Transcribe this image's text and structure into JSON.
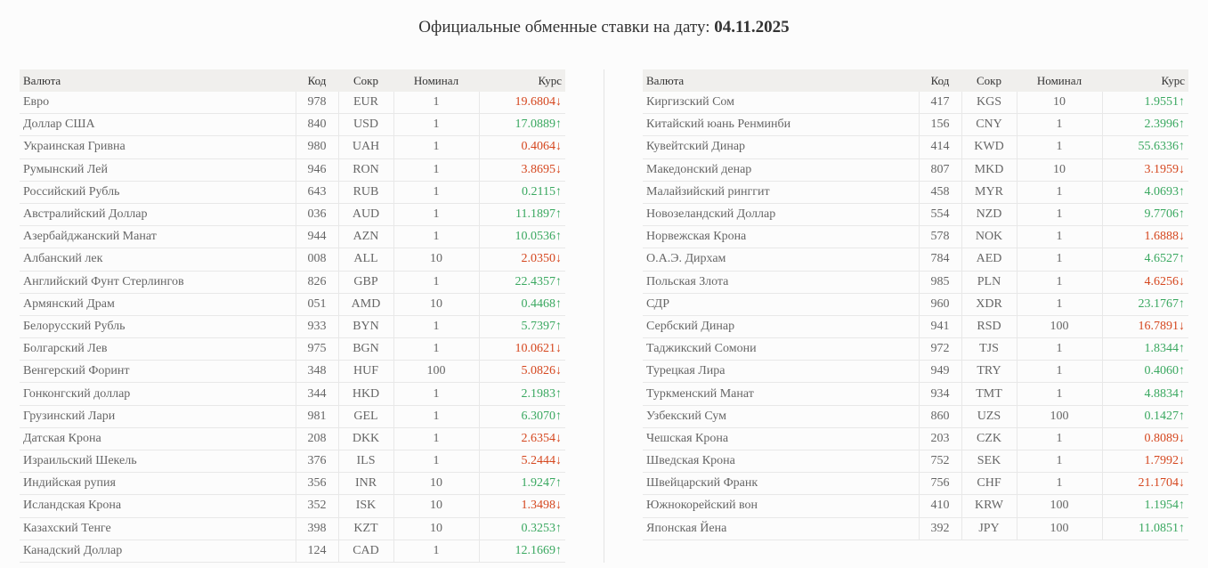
{
  "header": {
    "title": "Официальные обменные ставки на дату:",
    "date": "04.11.2025"
  },
  "tables": [
    {
      "columns": [
        "Валюта",
        "Код",
        "Сокр",
        "Номинал",
        "Курс"
      ],
      "rows": [
        {
          "cells": [
            "Евро",
            "978",
            "EUR",
            "1",
            "19.6804↓"
          ],
          "color": "#d5471f"
        },
        {
          "cells": [
            "Доллар США",
            "840",
            "USD",
            "1",
            "17.0889↑"
          ],
          "color": "#3aa860"
        },
        {
          "cells": [
            "Украинская Гривна",
            "980",
            "UAH",
            "1",
            "0.4064↓"
          ],
          "color": "#d5471f"
        },
        {
          "cells": [
            "Румынский Лей",
            "946",
            "RON",
            "1",
            "3.8695↓"
          ],
          "color": "#d5471f"
        },
        {
          "cells": [
            "Российский Рубль",
            "643",
            "RUB",
            "1",
            "0.2115↑"
          ],
          "color": "#3aa860"
        },
        {
          "cells": [
            "Австралийский Доллар",
            "036",
            "AUD",
            "1",
            "11.1897↑"
          ],
          "color": "#3aa860"
        },
        {
          "cells": [
            "Азербайджанский Манат",
            "944",
            "AZN",
            "1",
            "10.0536↑"
          ],
          "color": "#3aa860"
        },
        {
          "cells": [
            "Албанский лек",
            "008",
            "ALL",
            "10",
            "2.0350↓"
          ],
          "color": "#d5471f"
        },
        {
          "cells": [
            "Английский Фунт Стерлингов",
            "826",
            "GBP",
            "1",
            "22.4357↑"
          ],
          "color": "#3aa860"
        },
        {
          "cells": [
            "Армянский Драм",
            "051",
            "AMD",
            "10",
            "0.4468↑"
          ],
          "color": "#3aa860"
        },
        {
          "cells": [
            "Белорусский Рубль",
            "933",
            "BYN",
            "1",
            "5.7397↑"
          ],
          "color": "#3aa860"
        },
        {
          "cells": [
            "Болгарский Лев",
            "975",
            "BGN",
            "1",
            "10.0621↓"
          ],
          "color": "#d5471f"
        },
        {
          "cells": [
            "Венгерский Форинт",
            "348",
            "HUF",
            "100",
            "5.0826↓"
          ],
          "color": "#d5471f"
        },
        {
          "cells": [
            "Гонконгский доллар",
            "344",
            "HKD",
            "1",
            "2.1983↑"
          ],
          "color": "#3aa860"
        },
        {
          "cells": [
            "Грузинский Лари",
            "981",
            "GEL",
            "1",
            "6.3070↑"
          ],
          "color": "#3aa860"
        },
        {
          "cells": [
            "Датская Крона",
            "208",
            "DKK",
            "1",
            "2.6354↓"
          ],
          "color": "#d5471f"
        },
        {
          "cells": [
            "Израильский Шекель",
            "376",
            "ILS",
            "1",
            "5.2444↓"
          ],
          "color": "#d5471f"
        },
        {
          "cells": [
            "Индийская рупия",
            "356",
            "INR",
            "10",
            "1.9247↑"
          ],
          "color": "#3aa860"
        },
        {
          "cells": [
            "Исландская Крона",
            "352",
            "ISK",
            "10",
            "1.3498↓"
          ],
          "color": "#d5471f"
        },
        {
          "cells": [
            "Казахский Тенге",
            "398",
            "KZT",
            "10",
            "0.3253↑"
          ],
          "color": "#3aa860"
        },
        {
          "cells": [
            "Канадский Доллар",
            "124",
            "CAD",
            "1",
            "12.1669↑"
          ],
          "color": "#3aa860"
        }
      ]
    },
    {
      "columns": [
        "Валюта",
        "Код",
        "Сокр",
        "Номинал",
        "Курс"
      ],
      "rows": [
        {
          "cells": [
            "Киргизский Сом",
            "417",
            "KGS",
            "10",
            "1.9551↑"
          ],
          "color": "#3aa860"
        },
        {
          "cells": [
            "Китайский юань Ренминби",
            "156",
            "CNY",
            "1",
            "2.3996↑"
          ],
          "color": "#3aa860"
        },
        {
          "cells": [
            "Кувейтский Динар",
            "414",
            "KWD",
            "1",
            "55.6336↑"
          ],
          "color": "#3aa860"
        },
        {
          "cells": [
            "Македонский денар",
            "807",
            "MKD",
            "10",
            "3.1959↓"
          ],
          "color": "#d5471f"
        },
        {
          "cells": [
            "Малайзийский ринггит",
            "458",
            "MYR",
            "1",
            "4.0693↑"
          ],
          "color": "#3aa860"
        },
        {
          "cells": [
            "Новозеландский Доллар",
            "554",
            "NZD",
            "1",
            "9.7706↑"
          ],
          "color": "#3aa860"
        },
        {
          "cells": [
            "Норвежская Крона",
            "578",
            "NOK",
            "1",
            "1.6888↓"
          ],
          "color": "#d5471f"
        },
        {
          "cells": [
            "О.А.Э. Дирхам",
            "784",
            "AED",
            "1",
            "4.6527↑"
          ],
          "color": "#3aa860"
        },
        {
          "cells": [
            "Польская Злота",
            "985",
            "PLN",
            "1",
            "4.6256↓"
          ],
          "color": "#d5471f"
        },
        {
          "cells": [
            "СДР",
            "960",
            "XDR",
            "1",
            "23.1767↑"
          ],
          "color": "#3aa860"
        },
        {
          "cells": [
            "Сербский Динар",
            "941",
            "RSD",
            "100",
            "16.7891↓"
          ],
          "color": "#d5471f"
        },
        {
          "cells": [
            "Таджикский Сомони",
            "972",
            "TJS",
            "1",
            "1.8344↑"
          ],
          "color": "#3aa860"
        },
        {
          "cells": [
            "Турецкая Лира",
            "949",
            "TRY",
            "1",
            "0.4060↑"
          ],
          "color": "#3aa860"
        },
        {
          "cells": [
            "Туркменский Манат",
            "934",
            "TMT",
            "1",
            "4.8834↑"
          ],
          "color": "#3aa860"
        },
        {
          "cells": [
            "Узбекский Сум",
            "860",
            "UZS",
            "100",
            "0.1427↑"
          ],
          "color": "#3aa860"
        },
        {
          "cells": [
            "Чешская Крона",
            "203",
            "CZK",
            "1",
            "0.8089↓"
          ],
          "color": "#d5471f"
        },
        {
          "cells": [
            "Шведская Крона",
            "752",
            "SEK",
            "1",
            "1.7992↓"
          ],
          "color": "#d5471f"
        },
        {
          "cells": [
            "Швейцарский Франк",
            "756",
            "CHF",
            "1",
            "21.1704↓"
          ],
          "color": "#d5471f"
        },
        {
          "cells": [
            "Южнокорейский вон",
            "410",
            "KRW",
            "100",
            "1.1954↑"
          ],
          "color": "#3aa860"
        },
        {
          "cells": [
            "Японская Йена",
            "392",
            "JPY",
            "100",
            "11.0851↑"
          ],
          "color": "#3aa860"
        }
      ]
    }
  ]
}
